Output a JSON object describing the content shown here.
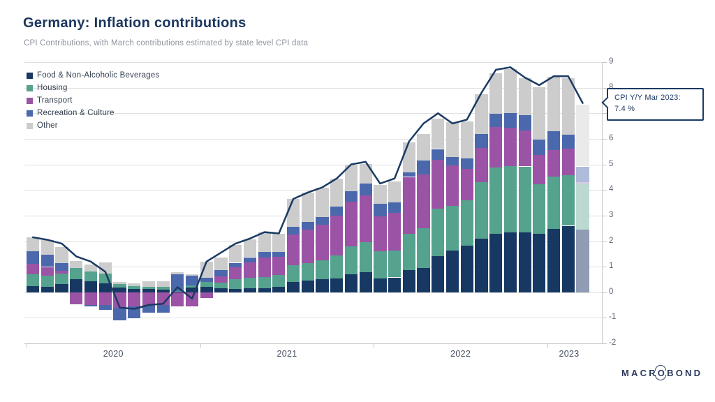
{
  "header": {
    "title": "Germany: Inflation contributions",
    "subtitle": "CPI Contributions, with March contributions estimated by state level CPI data"
  },
  "callout": {
    "line1": "CPI Y/Y Mar 2023:",
    "line2": "7.4 %"
  },
  "logo": {
    "pre": "MACR",
    "o": "O",
    "post": "BOND"
  },
  "chart_data": {
    "type": "bar",
    "subtype": "stacked-bar-with-line",
    "title": "Germany: Inflation contributions",
    "grid": true,
    "legend_position": "top-left",
    "ylim": [
      -2,
      9
    ],
    "yticks": [
      -2,
      -1,
      0,
      1,
      2,
      3,
      4,
      5,
      6,
      7,
      8,
      9
    ],
    "x_year_labels": [
      {
        "label": "2020",
        "tick_month_index": 0,
        "label_center_month": 6
      },
      {
        "label": "2021",
        "tick_month_index": 12,
        "label_center_month": 18
      },
      {
        "label": "2022",
        "tick_month_index": 24,
        "label_center_month": 30
      },
      {
        "label": "2023",
        "tick_month_index": 36,
        "label_center_month": 37.5
      }
    ],
    "categories": [
      "Jan 2020",
      "Feb 2020",
      "Mar 2020",
      "Apr 2020",
      "May 2020",
      "Jun 2020",
      "Jul 2020",
      "Aug 2020",
      "Sep 2020",
      "Oct 2020",
      "Nov 2020",
      "Dec 2020",
      "Jan 2021",
      "Feb 2021",
      "Mar 2021",
      "Apr 2021",
      "May 2021",
      "Jun 2021",
      "Jul 2021",
      "Aug 2021",
      "Sep 2021",
      "Oct 2021",
      "Nov 2021",
      "Dec 2021",
      "Jan 2022",
      "Feb 2022",
      "Mar 2022",
      "Apr 2022",
      "May 2022",
      "Jun 2022",
      "Jul 2022",
      "Aug 2022",
      "Sep 2022",
      "Oct 2022",
      "Nov 2022",
      "Dec 2022",
      "Jan 2023",
      "Feb 2023",
      "Mar 2023"
    ],
    "series": [
      {
        "name": "Food & Non-Alcoholic Beverages",
        "color": "#173862",
        "faded_color": "#8f9cb4",
        "values": [
          0.25,
          0.22,
          0.32,
          0.5,
          0.42,
          0.34,
          0.18,
          0.12,
          0.12,
          0.1,
          0.02,
          0.19,
          0.2,
          0.16,
          0.12,
          0.15,
          0.15,
          0.2,
          0.4,
          0.45,
          0.5,
          0.55,
          0.7,
          0.78,
          0.55,
          0.58,
          0.87,
          0.96,
          1.41,
          1.64,
          1.82,
          2.1,
          2.28,
          2.33,
          2.33,
          2.28,
          2.47,
          2.6,
          2.46
        ]
      },
      {
        "name": "Housing",
        "color": "#55a28e",
        "faded_color": "#bcd9d1",
        "values": [
          0.45,
          0.42,
          0.41,
          0.44,
          0.4,
          0.38,
          0.14,
          0.12,
          0.1,
          0.1,
          0.02,
          0.07,
          0.21,
          0.22,
          0.4,
          0.42,
          0.45,
          0.48,
          0.65,
          0.7,
          0.75,
          0.9,
          1.1,
          1.18,
          1.05,
          1.06,
          1.41,
          1.55,
          1.87,
          1.73,
          1.78,
          2.2,
          2.59,
          2.6,
          2.59,
          1.95,
          2.05,
          1.97,
          1.78
        ]
      },
      {
        "name": "Transport",
        "color": "#9b53a5",
        "faded_color": "#dcc8e3",
        "values": [
          0.4,
          0.35,
          0.12,
          -0.48,
          -0.49,
          -0.5,
          -0.6,
          -0.55,
          -0.52,
          -0.5,
          -0.55,
          -0.55,
          -0.22,
          0.25,
          0.45,
          0.6,
          0.75,
          0.7,
          1.2,
          1.3,
          1.4,
          1.55,
          1.75,
          1.82,
          1.36,
          1.46,
          2.23,
          2.09,
          1.91,
          1.59,
          1.23,
          1.35,
          1.6,
          1.5,
          1.41,
          1.14,
          1.05,
          1.05,
          0.06
        ]
      },
      {
        "name": "Recreation & Culture",
        "color": "#4b68ac",
        "faded_color": "#aebbdb",
        "values": [
          0.5,
          0.47,
          0.28,
          0.0,
          -0.06,
          -0.18,
          -0.5,
          -0.48,
          -0.28,
          -0.3,
          0.66,
          0.38,
          0.16,
          0.24,
          0.18,
          0.2,
          0.22,
          0.2,
          0.3,
          0.3,
          0.3,
          0.35,
          0.4,
          0.46,
          0.5,
          0.41,
          0.18,
          0.55,
          0.41,
          0.32,
          0.41,
          0.55,
          0.5,
          0.58,
          0.59,
          0.59,
          0.73,
          0.55,
          0.62
        ]
      },
      {
        "name": "Other",
        "color": "#cbcccb",
        "faded_color": "#eaeaea",
        "values": [
          0.55,
          0.58,
          0.65,
          0.27,
          0.26,
          0.44,
          0.08,
          0.12,
          0.2,
          0.22,
          0.08,
          0.07,
          0.62,
          0.5,
          0.7,
          0.7,
          0.78,
          0.72,
          1.1,
          1.15,
          1.15,
          1.1,
          1.05,
          0.77,
          0.73,
          0.82,
          1.18,
          1.04,
          1.18,
          1.37,
          1.45,
          1.55,
          1.6,
          1.73,
          1.46,
          2.07,
          2.12,
          2.21,
          2.41
        ]
      }
    ],
    "line_series": {
      "name": "CPI Y/Y",
      "color": "#1b3a63",
      "values": [
        2.15,
        2.05,
        1.9,
        1.4,
        1.2,
        0.8,
        -0.6,
        -0.65,
        -0.5,
        -0.45,
        0.2,
        -0.25,
        1.2,
        1.55,
        1.9,
        2.1,
        2.35,
        2.3,
        3.65,
        3.9,
        4.1,
        4.45,
        5.0,
        5.1,
        4.25,
        4.45,
        5.9,
        6.6,
        7.0,
        6.6,
        6.75,
        7.8,
        8.7,
        8.8,
        8.4,
        8.1,
        8.45,
        8.45,
        7.4
      ]
    },
    "estimated_month_index": 38,
    "annotation": {
      "text": "CPI Y/Y Mar 2023: 7.4 %",
      "month": "Mar 2023",
      "value": 7.4
    }
  }
}
